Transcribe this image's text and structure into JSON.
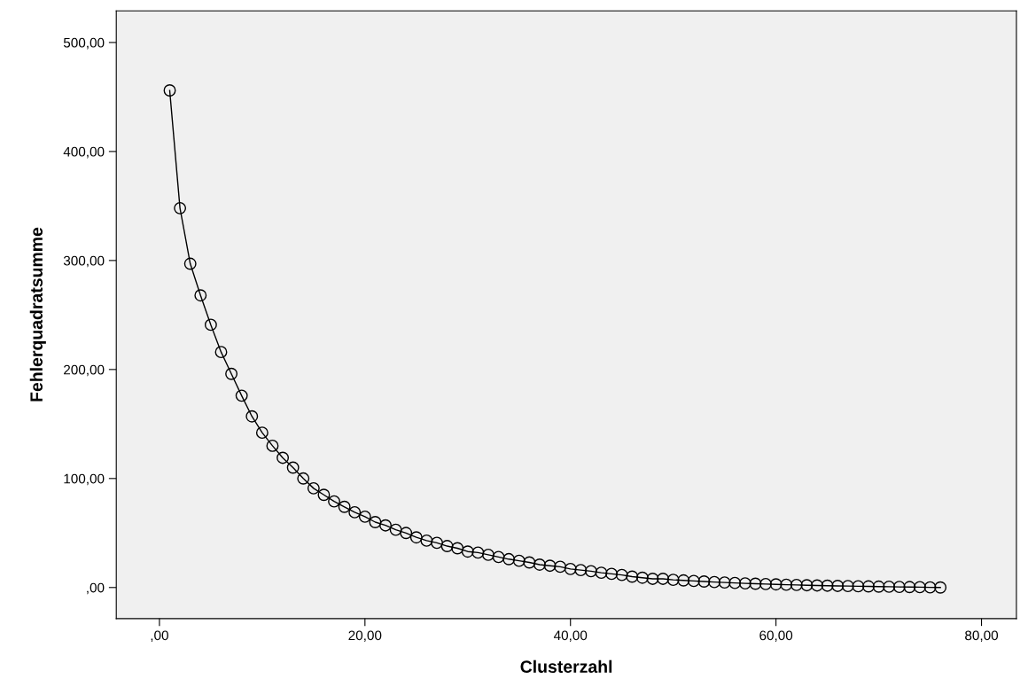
{
  "chart_data": {
    "type": "line",
    "xlabel": "Clusterzahl",
    "ylabel": "Fehlerquadratsumme",
    "x": [
      1,
      2,
      3,
      4,
      5,
      6,
      7,
      8,
      9,
      10,
      11,
      12,
      13,
      14,
      15,
      16,
      17,
      18,
      19,
      20,
      21,
      22,
      23,
      24,
      25,
      26,
      27,
      28,
      29,
      30,
      31,
      32,
      33,
      34,
      35,
      36,
      37,
      38,
      39,
      40,
      41,
      42,
      43,
      44,
      45,
      46,
      47,
      48,
      49,
      50,
      51,
      52,
      53,
      54,
      55,
      56,
      57,
      58,
      59,
      60,
      61,
      62,
      63,
      64,
      65,
      66,
      67,
      68,
      69,
      70,
      71,
      72,
      73,
      74,
      75,
      76
    ],
    "series": [
      {
        "color": "#000000",
        "values": [
          456,
          348,
          297,
          268,
          241,
          216,
          196,
          176,
          157,
          142,
          130,
          119,
          110,
          100,
          91,
          85,
          79,
          74,
          69,
          65,
          60,
          57,
          53,
          50,
          46,
          43,
          41,
          38,
          36,
          33,
          32,
          30,
          28,
          26,
          24.5,
          23,
          21,
          20,
          19,
          17,
          16,
          15,
          13.5,
          12.5,
          11.5,
          10,
          9,
          8,
          8,
          7,
          6.5,
          6,
          5.5,
          5,
          4.6,
          4.2,
          3.8,
          3.5,
          3.2,
          2.9,
          2.6,
          2.4,
          2.1,
          1.9,
          1.7,
          1.5,
          1.3,
          1.1,
          1,
          0.8,
          0.7,
          0.5,
          0.4,
          0.3,
          0.1,
          0
        ]
      }
    ],
    "marker": "circle",
    "line_style": "solid",
    "grid": false,
    "legend": false,
    "xlim": [
      -4.2,
      83.4
    ],
    "ylim": [
      -28.5,
      529
    ],
    "xticks": [
      {
        "value": 0,
        "label": ",00"
      },
      {
        "value": 20,
        "label": "20,00"
      },
      {
        "value": 40,
        "label": "40,00"
      },
      {
        "value": 60,
        "label": "60,00"
      },
      {
        "value": 80,
        "label": "80,00"
      }
    ],
    "yticks": [
      {
        "value": 0,
        "label": ",00"
      },
      {
        "value": 100,
        "label": "100,00"
      },
      {
        "value": 200,
        "label": "200,00"
      },
      {
        "value": 300,
        "label": "300,00"
      },
      {
        "value": 400,
        "label": "400,00"
      },
      {
        "value": 500,
        "label": "500,00"
      }
    ]
  }
}
